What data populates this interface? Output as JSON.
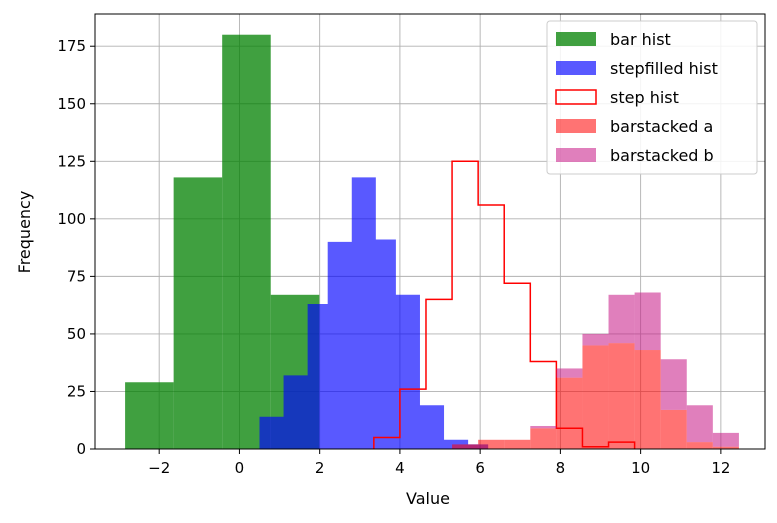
{
  "chart_data": {
    "type": "bar",
    "title": "",
    "xlabel": "Value",
    "ylabel": "Frequency",
    "xlim": [
      -3.6,
      13.1
    ],
    "ylim": [
      0,
      189
    ],
    "xticks": [
      -2,
      0,
      2,
      4,
      6,
      8,
      10,
      12
    ],
    "yticks": [
      0,
      25,
      50,
      75,
      100,
      125,
      150,
      175
    ],
    "grid": true,
    "legend_position": "top-right",
    "series": [
      {
        "name": "bar hist",
        "histtype": "bar",
        "color": "#008000",
        "opacity": 0.75,
        "bins": [
          {
            "x0": -2.85,
            "x1": -1.64,
            "value": 29
          },
          {
            "x0": -1.64,
            "x1": -0.43,
            "value": 118
          },
          {
            "x0": -0.43,
            "x1": 0.78,
            "value": 180
          },
          {
            "x0": 0.78,
            "x1": 1.99,
            "value": 67
          }
        ]
      },
      {
        "name": "stepfilled hist",
        "histtype": "stepfilled",
        "color": "#0000ff",
        "opacity": 0.65,
        "bins": [
          {
            "x0": 0.5,
            "x1": 1.1,
            "value": 14
          },
          {
            "x0": 1.1,
            "x1": 1.7,
            "value": 32
          },
          {
            "x0": 1.7,
            "x1": 2.2,
            "value": 63
          },
          {
            "x0": 2.2,
            "x1": 2.8,
            "value": 90
          },
          {
            "x0": 2.8,
            "x1": 3.4,
            "value": 118
          },
          {
            "x0": 3.4,
            "x1": 3.9,
            "value": 91
          },
          {
            "x0": 3.9,
            "x1": 4.5,
            "value": 67
          },
          {
            "x0": 4.5,
            "x1": 5.1,
            "value": 19
          },
          {
            "x0": 5.1,
            "x1": 5.7,
            "value": 4
          },
          {
            "x0": 5.7,
            "x1": 6.2,
            "value": 2
          }
        ]
      },
      {
        "name": "step hist",
        "histtype": "step",
        "color": "#ff0000",
        "bins": [
          {
            "x0": 3.35,
            "x1": 4.0,
            "value": 5
          },
          {
            "x0": 4.0,
            "x1": 4.65,
            "value": 26
          },
          {
            "x0": 4.65,
            "x1": 5.3,
            "value": 65
          },
          {
            "x0": 5.3,
            "x1": 5.95,
            "value": 125
          },
          {
            "x0": 5.95,
            "x1": 6.6,
            "value": 106
          },
          {
            "x0": 6.6,
            "x1": 7.25,
            "value": 72
          },
          {
            "x0": 7.25,
            "x1": 7.9,
            "value": 38
          },
          {
            "x0": 7.9,
            "x1": 8.55,
            "value": 9
          },
          {
            "x0": 8.55,
            "x1": 9.2,
            "value": 1
          },
          {
            "x0": 9.2,
            "x1": 9.85,
            "value": 3
          }
        ]
      },
      {
        "name": "barstacked a",
        "histtype": "barstacked",
        "color": "#ff0000",
        "opacity": 0.55,
        "bins": [
          {
            "x0": 5.3,
            "x1": 5.95,
            "value": 2
          },
          {
            "x0": 5.95,
            "x1": 6.6,
            "value": 4
          },
          {
            "x0": 6.6,
            "x1": 7.25,
            "value": 4
          },
          {
            "x0": 7.25,
            "x1": 7.9,
            "value": 9
          },
          {
            "x0": 7.9,
            "x1": 8.55,
            "value": 31
          },
          {
            "x0": 8.55,
            "x1": 9.2,
            "value": 45
          },
          {
            "x0": 9.2,
            "x1": 9.85,
            "value": 46
          },
          {
            "x0": 9.85,
            "x1": 10.5,
            "value": 43
          },
          {
            "x0": 10.5,
            "x1": 11.15,
            "value": 17
          },
          {
            "x0": 11.15,
            "x1": 11.8,
            "value": 3
          },
          {
            "x0": 11.8,
            "x1": 12.45,
            "value": 1
          }
        ]
      },
      {
        "name": "barstacked b",
        "histtype": "barstacked",
        "color": "#c71585",
        "opacity": 0.55,
        "bins": [
          {
            "x0": 5.3,
            "x1": 5.95,
            "value": 0
          },
          {
            "x0": 5.95,
            "x1": 6.6,
            "value": 0
          },
          {
            "x0": 6.6,
            "x1": 7.25,
            "value": 0
          },
          {
            "x0": 7.25,
            "x1": 7.9,
            "value": 1
          },
          {
            "x0": 7.9,
            "x1": 8.55,
            "value": 4
          },
          {
            "x0": 8.55,
            "x1": 9.2,
            "value": 5
          },
          {
            "x0": 9.2,
            "x1": 9.85,
            "value": 21
          },
          {
            "x0": 9.85,
            "x1": 10.5,
            "value": 25
          },
          {
            "x0": 10.5,
            "x1": 11.15,
            "value": 22
          },
          {
            "x0": 11.15,
            "x1": 11.8,
            "value": 16
          },
          {
            "x0": 11.8,
            "x1": 12.45,
            "value": 6
          }
        ]
      }
    ]
  }
}
